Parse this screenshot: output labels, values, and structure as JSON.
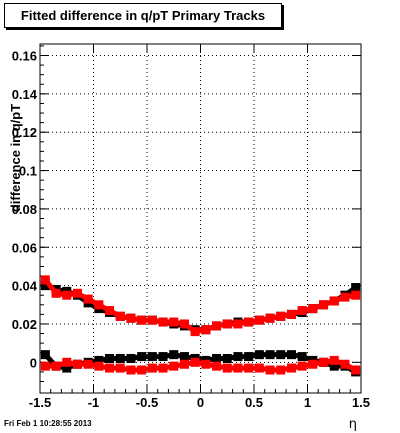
{
  "footer": {
    "timestamp": "Fri Feb  1 10:28:55 2013"
  },
  "chart_data": {
    "type": "scatter",
    "title": "Fitted difference in q/pT  Primary Tracks",
    "xlabel": "η",
    "ylabel": "difference in q/pT",
    "xlim": [
      -1.5,
      1.5
    ],
    "ylim": [
      -0.016,
      0.166
    ],
    "grid": true,
    "x_ticks": [
      -1.5,
      -1,
      -0.5,
      0,
      0.5,
      1,
      1.5
    ],
    "x_tick_labels": [
      "-1.5",
      "-1",
      "-0.5",
      "0",
      "0.5",
      "1",
      "1.5"
    ],
    "y_ticks": [
      0,
      0.02,
      0.04,
      0.06,
      0.08,
      0.1,
      0.12,
      0.14,
      0.16
    ],
    "y_tick_labels": [
      "0",
      "0.02",
      "0.04",
      "0.06",
      "0.08",
      "0.1",
      "0.12",
      "0.14",
      "0.16"
    ],
    "series": [
      {
        "color": "#000000",
        "marker": "square",
        "x": [
          -1.45,
          -1.35,
          -1.25,
          -1.15,
          -1.05,
          -0.95,
          -0.85,
          -0.75,
          -0.65,
          -0.55,
          -0.45,
          -0.35,
          -0.25,
          -0.15,
          -0.05,
          0.05,
          0.15,
          0.25,
          0.35,
          0.45,
          0.55,
          0.65,
          0.75,
          0.85,
          0.95,
          1.05,
          1.15,
          1.25,
          1.35,
          1.45
        ],
        "y": [
          0.04,
          0.038,
          0.037,
          0.035,
          0.031,
          0.028,
          0.026,
          0.024,
          0.023,
          0.022,
          0.022,
          0.021,
          0.02,
          0.019,
          0.017,
          0.017,
          0.019,
          0.02,
          0.021,
          0.021,
          0.022,
          0.023,
          0.024,
          0.025,
          0.026,
          0.028,
          0.03,
          0.032,
          0.035,
          0.039
        ]
      },
      {
        "color": "#000000",
        "marker": "square",
        "x": [
          -1.45,
          -1.35,
          -1.25,
          -1.15,
          -1.05,
          -0.95,
          -0.85,
          -0.75,
          -0.65,
          -0.55,
          -0.45,
          -0.35,
          -0.25,
          -0.15,
          -0.05,
          0.05,
          0.15,
          0.25,
          0.35,
          0.45,
          0.55,
          0.65,
          0.75,
          0.85,
          0.95,
          1.05,
          1.15,
          1.25,
          1.35,
          1.45
        ],
        "y": [
          0.004,
          -0.002,
          -0.003,
          -0.001,
          0.0,
          0.001,
          0.002,
          0.002,
          0.002,
          0.003,
          0.003,
          0.003,
          0.004,
          0.003,
          0.002,
          0.001,
          0.002,
          0.002,
          0.003,
          0.003,
          0.004,
          0.004,
          0.004,
          0.004,
          0.003,
          0.001,
          0.0,
          -0.002,
          -0.002,
          -0.005
        ]
      },
      {
        "color": "#ff0000",
        "marker": "square",
        "x": [
          -1.45,
          -1.35,
          -1.25,
          -1.15,
          -1.05,
          -0.95,
          -0.85,
          -0.75,
          -0.65,
          -0.55,
          -0.45,
          -0.35,
          -0.25,
          -0.15,
          -0.05,
          0.05,
          0.15,
          0.25,
          0.35,
          0.45,
          0.55,
          0.65,
          0.75,
          0.85,
          0.95,
          1.05,
          1.15,
          1.25,
          1.35,
          1.45
        ],
        "y": [
          0.043,
          0.036,
          0.035,
          0.036,
          0.033,
          0.03,
          0.027,
          0.024,
          0.023,
          0.022,
          0.022,
          0.021,
          0.021,
          0.02,
          0.016,
          0.017,
          0.019,
          0.02,
          0.02,
          0.021,
          0.022,
          0.023,
          0.024,
          0.025,
          0.027,
          0.028,
          0.03,
          0.032,
          0.034,
          0.035
        ]
      },
      {
        "color": "#ff0000",
        "marker": "square",
        "x": [
          -1.45,
          -1.35,
          -1.25,
          -1.15,
          -1.05,
          -0.95,
          -0.85,
          -0.75,
          -0.65,
          -0.55,
          -0.45,
          -0.35,
          -0.25,
          -0.15,
          -0.05,
          0.05,
          0.15,
          0.25,
          0.35,
          0.45,
          0.55,
          0.65,
          0.75,
          0.85,
          0.95,
          1.05,
          1.15,
          1.25,
          1.35,
          1.45
        ],
        "y": [
          -0.002,
          -0.002,
          0.0,
          -0.001,
          -0.001,
          -0.002,
          -0.003,
          -0.003,
          -0.004,
          -0.004,
          -0.003,
          -0.003,
          -0.002,
          -0.001,
          0.0,
          -0.001,
          -0.002,
          -0.003,
          -0.003,
          -0.003,
          -0.003,
          -0.004,
          -0.004,
          -0.003,
          -0.002,
          -0.001,
          0.0,
          0.001,
          -0.001,
          -0.004
        ]
      }
    ]
  }
}
